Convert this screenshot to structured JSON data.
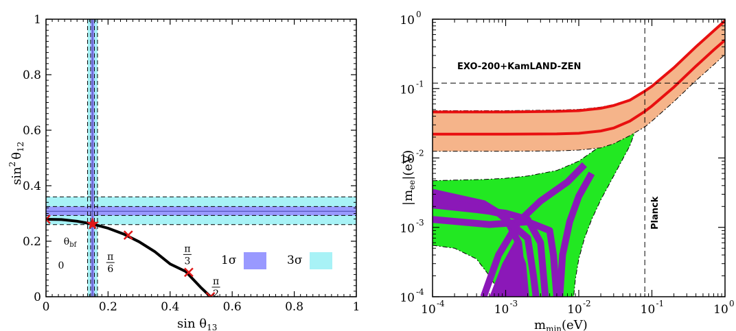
{
  "chart_data": [
    {
      "type": "line",
      "title": "",
      "xlabel": "sin θ",
      "xlabel_sub": "13",
      "ylabel": "sin",
      "ylabel_sup": "2",
      "ylabel_theta": "θ",
      "ylabel_sub": "12",
      "xlim": [
        0,
        1
      ],
      "ylim": [
        0,
        1
      ],
      "xticks": [
        0,
        0.2,
        0.4,
        0.6,
        0.8,
        1
      ],
      "xtick_labels": [
        "0",
        "0.2",
        "0.4",
        "0.6",
        "0.8",
        "1"
      ],
      "yticks": [
        0,
        0.2,
        0.4,
        0.6,
        0.8,
        1
      ],
      "ytick_labels": [
        "0",
        "0.2",
        "0.4",
        "0.6",
        "0.8",
        "1"
      ],
      "bands": {
        "vertical": {
          "sigma3": [
            0.134,
            0.166
          ],
          "sigma1": [
            0.144,
            0.156
          ],
          "bestfit": 0.15
        },
        "horizontal": {
          "sigma3": [
            0.26,
            0.36
          ],
          "sigma1": [
            0.293,
            0.325
          ],
          "bestfit": 0.308
        }
      },
      "curve": {
        "x": [
          0,
          0.05,
          0.1,
          0.15,
          0.2,
          0.25,
          0.3,
          0.35,
          0.4,
          0.45,
          0.5,
          0.53
        ],
        "y": [
          0.279,
          0.278,
          0.272,
          0.262,
          0.247,
          0.226,
          0.198,
          0.163,
          0.118,
          0.091,
          0.032,
          0.0
        ]
      },
      "markers": [
        {
          "x": 0.0,
          "y": 0.279,
          "label": "0"
        },
        {
          "x": 0.265,
          "y": 0.222,
          "label": "π/6"
        },
        {
          "x": 0.46,
          "y": 0.088,
          "label": "π/3"
        },
        {
          "x": 0.53,
          "y": 0.0,
          "label": "π/2"
        }
      ],
      "bestfit_point": {
        "x": 0.15,
        "y": 0.262,
        "label": "θ",
        "label_sub": "bf"
      },
      "legend": [
        {
          "label": "1σ",
          "color": "#9999ff"
        },
        {
          "label": "3σ",
          "color": "#a8f2f6"
        }
      ],
      "legend_position": "lower-right",
      "colors": {
        "sigma1": "#9999ff",
        "sigma3": "#a8f2f6",
        "curve": "#000000",
        "marker": "#e01818"
      }
    },
    {
      "type": "area",
      "title": "",
      "xlabel": "m",
      "xlabel_sub": "min",
      "xlabel_unit": "(eV)",
      "ylabel": "|m",
      "ylabel_sub": "ee",
      "ylabel_unit": "|(eV)",
      "xscale": "log",
      "yscale": "log",
      "xlim": [
        0.0001,
        1
      ],
      "ylim": [
        0.0001,
        1
      ],
      "xticks": [
        0.0001,
        0.001,
        0.01,
        0.1,
        1
      ],
      "xtick_exponents": [
        "-4",
        "-3",
        "-2",
        "-1",
        "0"
      ],
      "yticks": [
        0.0001,
        0.001,
        0.01,
        0.1,
        1
      ],
      "ytick_exponents": [
        "-4",
        "-3",
        "-2",
        "-1",
        "0"
      ],
      "tick_base": "10",
      "limits": {
        "exo_kamland": {
          "y": 0.12,
          "label": "EXO-200+KamLAND-ZEN"
        },
        "planck": {
          "x": 0.08,
          "label": "Planck"
        }
      },
      "inverted_band": {
        "x": [
          0.0001,
          0.001,
          0.005,
          0.01,
          0.02,
          0.03,
          0.05,
          0.08,
          0.1,
          0.2,
          0.4,
          0.7,
          1
        ],
        "upper": [
          0.048,
          0.048,
          0.049,
          0.05,
          0.054,
          0.059,
          0.07,
          0.095,
          0.112,
          0.205,
          0.41,
          0.7,
          1.0
        ],
        "lower": [
          0.0125,
          0.0125,
          0.0126,
          0.013,
          0.014,
          0.016,
          0.021,
          0.028,
          0.034,
          0.065,
          0.13,
          0.22,
          0.31
        ]
      },
      "red_lines": [
        {
          "x": [
            0.0001,
            0.001,
            0.005,
            0.01,
            0.02,
            0.03,
            0.05,
            0.08,
            0.1,
            0.2,
            0.4,
            0.7,
            1
          ],
          "y": [
            0.046,
            0.046,
            0.047,
            0.048,
            0.052,
            0.057,
            0.068,
            0.092,
            0.108,
            0.2,
            0.4,
            0.68,
            0.95
          ]
        },
        {
          "x": [
            0.0001,
            0.001,
            0.005,
            0.01,
            0.02,
            0.03,
            0.05,
            0.08,
            0.1,
            0.2,
            0.4,
            0.7,
            1
          ],
          "y": [
            0.022,
            0.022,
            0.0222,
            0.0227,
            0.0245,
            0.027,
            0.034,
            0.047,
            0.056,
            0.105,
            0.21,
            0.36,
            0.5
          ]
        }
      ],
      "normal_band": {
        "x": [
          0.0001,
          0.0002,
          0.0005,
          0.001,
          0.002,
          0.005,
          0.01,
          0.02,
          0.04,
          0.07
        ],
        "upper": [
          0.0047,
          0.0048,
          0.0049,
          0.0051,
          0.0055,
          0.0066,
          0.009,
          0.015,
          0.028,
          0.048
        ],
        "lower_left": {
          "x": [
            0.0001,
            0.0002,
            0.0004,
            0.0006,
            0.0008,
            0.001
          ],
          "y": [
            0.00055,
            0.0005,
            0.00035,
            0.0002,
            0.00012,
            0.0001
          ]
        },
        "lower_right": {
          "x": [
            0.0085,
            0.009,
            0.01,
            0.012,
            0.015,
            0.02,
            0.03,
            0.05,
            0.07
          ],
          "y": [
            0.0001,
            0.00018,
            0.00035,
            0.0007,
            0.0013,
            0.0025,
            0.0055,
            0.015,
            0.04
          ]
        }
      },
      "colors": {
        "inverted": "#f5b48a",
        "normal": "#22e822",
        "purple": "#8b18b8",
        "red": "#e81010"
      }
    }
  ]
}
